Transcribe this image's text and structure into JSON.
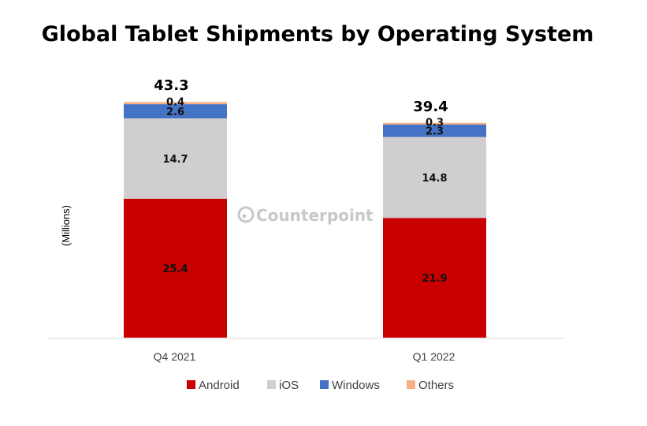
{
  "chart_data": {
    "type": "bar",
    "stacked": true,
    "title": "Global Tablet Shipments by Operating System",
    "xlabel": "",
    "ylabel": "(Millions)",
    "categories": [
      "Q4 2021",
      "Q1 2022"
    ],
    "series": [
      {
        "name": "Android",
        "color": "#c80000",
        "values": [
          25.4,
          21.9
        ]
      },
      {
        "name": "iOS",
        "color": "#d0cece",
        "values": [
          14.7,
          14.8
        ]
      },
      {
        "name": "Windows",
        "color": "#4472c4",
        "values": [
          2.6,
          2.3
        ]
      },
      {
        "name": "Others",
        "color": "#f4b183",
        "values": [
          0.4,
          0.3
        ]
      }
    ],
    "totals": [
      43.3,
      39.4
    ],
    "total_labels": [
      "43.3",
      "39.4"
    ],
    "ylim": [
      0,
      45
    ],
    "grid": false,
    "legend": "bottom",
    "watermark": "Counterpoint"
  }
}
